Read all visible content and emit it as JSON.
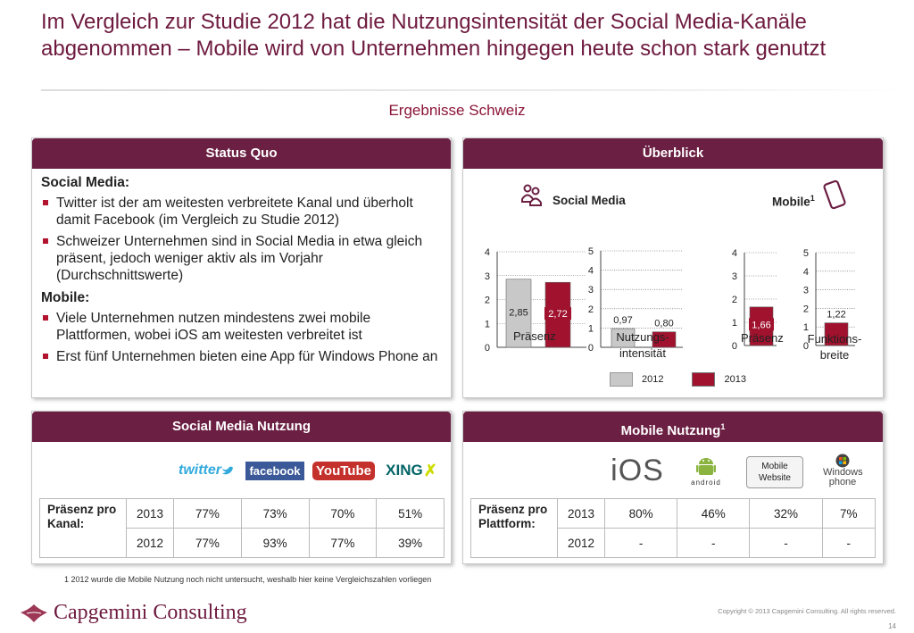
{
  "title": "Im Vergleich zur Studie 2012 hat die Nutzungsintensität der Social Media-Kanäle abgenommen – Mobile wird von Unternehmen hingegen heute schon stark genutzt",
  "subtitle": "Ergebnisse Schweiz",
  "status_quo": {
    "heading": "Status Quo",
    "social_heading": "Social Media:",
    "social_bullets": [
      "Twitter ist der am weitesten verbreitete Kanal und überholt damit Facebook (im Vergleich zu Studie 2012)",
      "Schweizer Unternehmen sind in Social Media in etwa gleich präsent, jedoch weniger aktiv als im Vorjahr (Durchschnittswerte)"
    ],
    "mobile_heading": "Mobile:",
    "mobile_bullets": [
      "Viele Unternehmen nutzen mindestens zwei mobile Plattformen, wobei iOS am weitesten verbreitet ist",
      "Erst fünf Unternehmen bieten eine App für Windows Phone an"
    ]
  },
  "overview": {
    "heading": "Überblick",
    "social_title": "Social Media",
    "mobile_title": "Mobile",
    "mobile_sup": "1",
    "legend": [
      "2012",
      "2013"
    ]
  },
  "chart_data": [
    {
      "type": "bar",
      "categories": [
        "Präsenz"
      ],
      "series": [
        {
          "name": "2012",
          "values": [
            2.85
          ]
        },
        {
          "name": "2013",
          "values": [
            2.72
          ]
        }
      ],
      "ylim": [
        0,
        4
      ],
      "data_labels": [
        "2,85",
        "2,72"
      ],
      "yticks": [
        "0",
        "1",
        "2",
        "3",
        "4"
      ]
    },
    {
      "type": "bar",
      "categories": [
        "Nutzungs-intensität"
      ],
      "series": [
        {
          "name": "2012",
          "values": [
            0.97
          ]
        },
        {
          "name": "2013",
          "values": [
            0.8
          ]
        }
      ],
      "ylim": [
        0,
        5
      ],
      "data_labels": [
        "0,97",
        "0,80"
      ],
      "yticks": [
        "0",
        "1",
        "2",
        "3",
        "4",
        "5"
      ]
    },
    {
      "type": "bar",
      "categories": [
        "Präsenz"
      ],
      "series": [
        {
          "name": "2013",
          "values": [
            1.66
          ]
        }
      ],
      "ylim": [
        0,
        4
      ],
      "data_labels": [
        "1,66"
      ],
      "yticks": [
        "0",
        "1",
        "2",
        "3",
        "4"
      ]
    },
    {
      "type": "bar",
      "categories": [
        "Funktions-breite"
      ],
      "series": [
        {
          "name": "2013",
          "values": [
            1.22
          ]
        }
      ],
      "ylim": [
        0,
        5
      ],
      "data_labels": [
        "1,22"
      ],
      "yticks": [
        "0",
        "1",
        "2",
        "3",
        "4",
        "5"
      ]
    }
  ],
  "chart_labels": {
    "c1": "Präsenz",
    "c2a": "Nutzungs-",
    "c2b": "intensität",
    "c3": "Präsenz",
    "c4a": "Funktions-",
    "c4b": "breite"
  },
  "colors": {
    "bar_2012": "#c8c8c8",
    "bar_2013": "#a0122e",
    "brand": "#6b1f42"
  },
  "social_usage": {
    "heading": "Social Media Nutzung",
    "row_label": "Präsenz pro Kanal:",
    "logos": [
      "twitter",
      "facebook",
      "YouTube",
      "XING"
    ],
    "rows": [
      {
        "year": "2013",
        "values": [
          "77%",
          "73%",
          "70%",
          "51%"
        ]
      },
      {
        "year": "2012",
        "values": [
          "77%",
          "93%",
          "77%",
          "39%"
        ]
      }
    ]
  },
  "mobile_usage": {
    "heading": "Mobile Nutzung",
    "heading_sup": "1",
    "row_label": "Präsenz pro Plattform:",
    "logos": [
      "iOS",
      "android",
      "Mobile Website",
      "Windows phone"
    ],
    "rows": [
      {
        "year": "2013",
        "values": [
          "80%",
          "46%",
          "32%",
          "7%"
        ]
      },
      {
        "year": "2012",
        "values": [
          "-",
          "-",
          "-",
          "-"
        ]
      }
    ]
  },
  "footnote": "1   2012 wurde die Mobile Nutzung noch nicht untersucht, weshalb hier keine Vergleichszahlen vorliegen",
  "brand": "Capgemini Consulting",
  "copyright": "Copyright © 2013 Capgemini Consulting. All rights reserved.",
  "page_number": "14"
}
